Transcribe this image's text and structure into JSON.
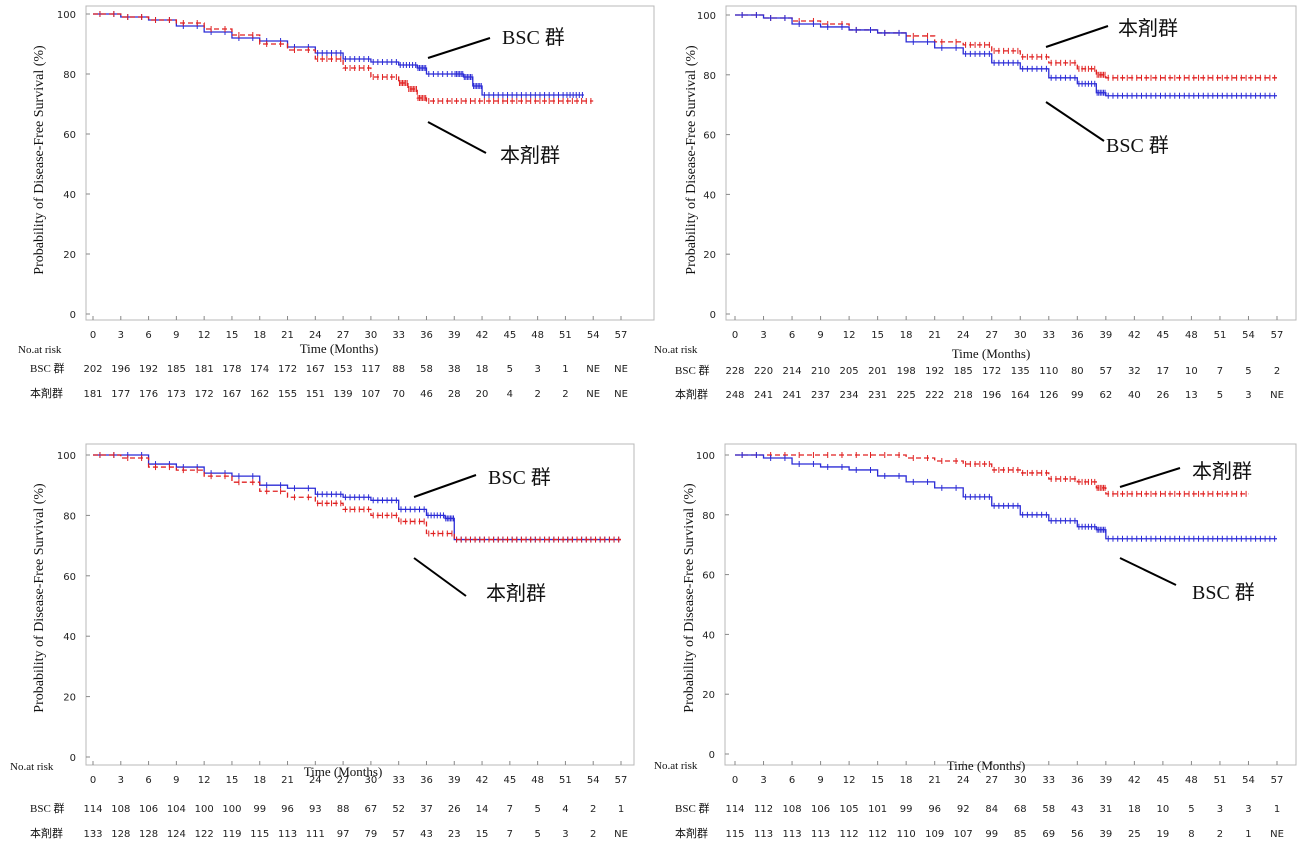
{
  "chart_data": [
    {
      "type": "line",
      "ylabel": "Probability of Disease-Free Survival (%)",
      "xlabel": "Time (Months)",
      "xlim": [
        0,
        57
      ],
      "ylim": [
        0,
        100
      ],
      "x_ticks": [
        0,
        3,
        6,
        9,
        12,
        15,
        18,
        21,
        24,
        27,
        30,
        33,
        36,
        39,
        42,
        45,
        48,
        51,
        54,
        57
      ],
      "y_ticks": [
        0,
        20,
        40,
        60,
        80,
        100
      ],
      "grid": false,
      "series": [
        {
          "name": "BSC 群",
          "color": "#2b2bd6",
          "style": "solid",
          "x": [
            0,
            3,
            6,
            9,
            12,
            15,
            18,
            21,
            24,
            27,
            30,
            33,
            35,
            36,
            39,
            40,
            41,
            42,
            45,
            48,
            51,
            53
          ],
          "y": [
            100,
            99,
            98,
            96,
            94,
            92,
            91,
            89,
            87,
            85,
            84,
            83,
            82,
            80,
            80,
            79,
            76,
            73,
            73,
            73,
            73,
            73
          ]
        },
        {
          "name": "本剤群",
          "color": "#e02020",
          "style": "dashed",
          "x": [
            0,
            3,
            6,
            9,
            12,
            15,
            18,
            21,
            24,
            27,
            30,
            33,
            34,
            35,
            36,
            39,
            42,
            45,
            48,
            51,
            54
          ],
          "y": [
            100,
            99,
            98,
            97,
            95,
            93,
            90,
            88,
            85,
            82,
            79,
            77,
            75,
            72,
            71,
            71,
            71,
            71,
            71,
            71,
            71
          ]
        }
      ],
      "annotations": [
        {
          "text": "BSC 群",
          "target_series": 0
        },
        {
          "text": "本剤群",
          "target_series": 1
        }
      ],
      "risk_table": {
        "header": "No.at risk",
        "rows": [
          {
            "label": "BSC 群",
            "values": [
              "202",
              "196",
              "192",
              "185",
              "181",
              "178",
              "174",
              "172",
              "167",
              "153",
              "117",
              "88",
              "58",
              "38",
              "18",
              "5",
              "3",
              "1",
              "NE",
              "NE"
            ]
          },
          {
            "label": "本剤群",
            "values": [
              "181",
              "177",
              "176",
              "173",
              "172",
              "167",
              "162",
              "155",
              "151",
              "139",
              "107",
              "70",
              "46",
              "28",
              "20",
              "4",
              "2",
              "2",
              "NE",
              "NE"
            ]
          }
        ]
      }
    },
    {
      "type": "line",
      "ylabel": "Probability of Disease-Free Survival (%)",
      "xlabel": "Time (Months)",
      "xlim": [
        0,
        57
      ],
      "ylim": [
        0,
        100
      ],
      "x_ticks": [
        0,
        3,
        6,
        9,
        12,
        15,
        18,
        21,
        24,
        27,
        30,
        33,
        36,
        39,
        42,
        45,
        48,
        51,
        54,
        57
      ],
      "y_ticks": [
        0,
        20,
        40,
        60,
        80,
        100
      ],
      "grid": false,
      "series": [
        {
          "name": "本剤群",
          "color": "#e02020",
          "style": "dashed",
          "x": [
            0,
            3,
            6,
            9,
            12,
            15,
            18,
            21,
            24,
            27,
            30,
            33,
            36,
            38,
            39,
            42,
            45,
            48,
            51,
            54,
            57
          ],
          "y": [
            100,
            99,
            98,
            97,
            95,
            94,
            93,
            91,
            90,
            88,
            86,
            84,
            82,
            80,
            79,
            79,
            79,
            79,
            79,
            79,
            79
          ]
        },
        {
          "name": "BSC 群",
          "color": "#2b2bd6",
          "style": "solid",
          "x": [
            0,
            3,
            6,
            9,
            12,
            15,
            18,
            21,
            24,
            27,
            30,
            33,
            36,
            38,
            39,
            42,
            45,
            48,
            51,
            54,
            57
          ],
          "y": [
            100,
            99,
            97,
            96,
            95,
            94,
            91,
            89,
            87,
            84,
            82,
            79,
            77,
            74,
            73,
            73,
            73,
            73,
            73,
            73,
            73
          ]
        }
      ],
      "annotations": [
        {
          "text": "本剤群",
          "target_series": 0
        },
        {
          "text": "BSC 群",
          "target_series": 1
        }
      ],
      "risk_table": {
        "header": "No.at risk",
        "rows": [
          {
            "label": "BSC 群",
            "values": [
              "228",
              "220",
              "214",
              "210",
              "205",
              "201",
              "198",
              "192",
              "185",
              "172",
              "135",
              "110",
              "80",
              "57",
              "32",
              "17",
              "10",
              "7",
              "5",
              "2"
            ]
          },
          {
            "label": "本剤群",
            "values": [
              "248",
              "241",
              "241",
              "237",
              "234",
              "231",
              "225",
              "222",
              "218",
              "196",
              "164",
              "126",
              "99",
              "62",
              "40",
              "26",
              "13",
              "5",
              "3",
              "NE"
            ]
          }
        ]
      }
    },
    {
      "type": "line",
      "ylabel": "Probability of Disease-Free Survival (%)",
      "xlabel": "Time (Months)",
      "xlim": [
        0,
        57
      ],
      "ylim": [
        0,
        100
      ],
      "x_ticks": [
        0,
        3,
        6,
        9,
        12,
        15,
        18,
        21,
        24,
        27,
        30,
        33,
        36,
        39,
        42,
        45,
        48,
        51,
        54,
        57
      ],
      "y_ticks": [
        0,
        20,
        40,
        60,
        80,
        100
      ],
      "grid": false,
      "series": [
        {
          "name": "BSC 群",
          "color": "#2b2bd6",
          "style": "solid",
          "x": [
            0,
            3,
            6,
            9,
            12,
            15,
            18,
            21,
            24,
            27,
            30,
            33,
            36,
            38,
            39,
            42,
            45,
            48,
            51,
            54,
            57
          ],
          "y": [
            100,
            100,
            97,
            96,
            94,
            93,
            90,
            89,
            87,
            86,
            85,
            82,
            80,
            79,
            72,
            72,
            72,
            72,
            72,
            72,
            72
          ]
        },
        {
          "name": "本剤群",
          "color": "#e02020",
          "style": "dashed",
          "x": [
            0,
            3,
            6,
            9,
            12,
            15,
            18,
            21,
            24,
            27,
            30,
            33,
            36,
            39,
            42,
            45,
            48,
            51,
            54,
            57
          ],
          "y": [
            100,
            99,
            96,
            95,
            93,
            91,
            88,
            86,
            84,
            82,
            80,
            78,
            74,
            72,
            72,
            72,
            72,
            72,
            72,
            72
          ]
        }
      ],
      "annotations": [
        {
          "text": "BSC 群",
          "target_series": 0
        },
        {
          "text": "本剤群",
          "target_series": 1
        }
      ],
      "risk_table": {
        "header": "No.at risk",
        "rows": [
          {
            "label": "BSC 群",
            "values": [
              "114",
              "108",
              "106",
              "104",
              "100",
              "100",
              "99",
              "96",
              "93",
              "88",
              "67",
              "52",
              "37",
              "26",
              "14",
              "7",
              "5",
              "4",
              "2",
              "1"
            ]
          },
          {
            "label": "本剤群",
            "values": [
              "133",
              "128",
              "128",
              "124",
              "122",
              "119",
              "115",
              "113",
              "111",
              "97",
              "79",
              "57",
              "43",
              "23",
              "15",
              "7",
              "5",
              "3",
              "2",
              "NE"
            ]
          }
        ]
      }
    },
    {
      "type": "line",
      "ylabel": "Probability of Disease-Free Survival (%)",
      "xlabel": "Time (Months)",
      "xlim": [
        0,
        57
      ],
      "ylim": [
        0,
        100
      ],
      "x_ticks": [
        0,
        3,
        6,
        9,
        12,
        15,
        18,
        21,
        24,
        27,
        30,
        33,
        36,
        39,
        42,
        45,
        48,
        51,
        54,
        57
      ],
      "y_ticks": [
        0,
        20,
        40,
        60,
        80,
        100
      ],
      "grid": false,
      "series": [
        {
          "name": "本剤群",
          "color": "#e02020",
          "style": "dashed",
          "x": [
            0,
            3,
            6,
            9,
            12,
            15,
            18,
            21,
            24,
            27,
            30,
            33,
            36,
            38,
            39,
            42,
            45,
            48,
            51,
            54
          ],
          "y": [
            100,
            100,
            100,
            100,
            100,
            100,
            99,
            98,
            97,
            95,
            94,
            92,
            91,
            89,
            87,
            87,
            87,
            87,
            87,
            87
          ]
        },
        {
          "name": "BSC 群",
          "color": "#2b2bd6",
          "style": "solid",
          "x": [
            0,
            3,
            6,
            9,
            12,
            15,
            18,
            21,
            24,
            27,
            30,
            33,
            36,
            38,
            39,
            42,
            45,
            48,
            51,
            54,
            57
          ],
          "y": [
            100,
            99,
            97,
            96,
            95,
            93,
            91,
            89,
            86,
            83,
            80,
            78,
            76,
            75,
            72,
            72,
            72,
            72,
            72,
            72,
            72
          ]
        }
      ],
      "annotations": [
        {
          "text": "本剤群",
          "target_series": 0
        },
        {
          "text": "BSC 群",
          "target_series": 1
        }
      ],
      "risk_table": {
        "header": "No.at risk",
        "rows": [
          {
            "label": "BSC 群",
            "values": [
              "114",
              "112",
              "108",
              "106",
              "105",
              "101",
              "99",
              "96",
              "92",
              "84",
              "68",
              "58",
              "43",
              "31",
              "18",
              "10",
              "5",
              "3",
              "3",
              "1"
            ]
          },
          {
            "label": "本剤群",
            "values": [
              "115",
              "113",
              "113",
              "113",
              "112",
              "112",
              "110",
              "109",
              "107",
              "99",
              "85",
              "69",
              "56",
              "39",
              "25",
              "19",
              "8",
              "2",
              "1",
              "NE"
            ]
          }
        ]
      }
    }
  ]
}
